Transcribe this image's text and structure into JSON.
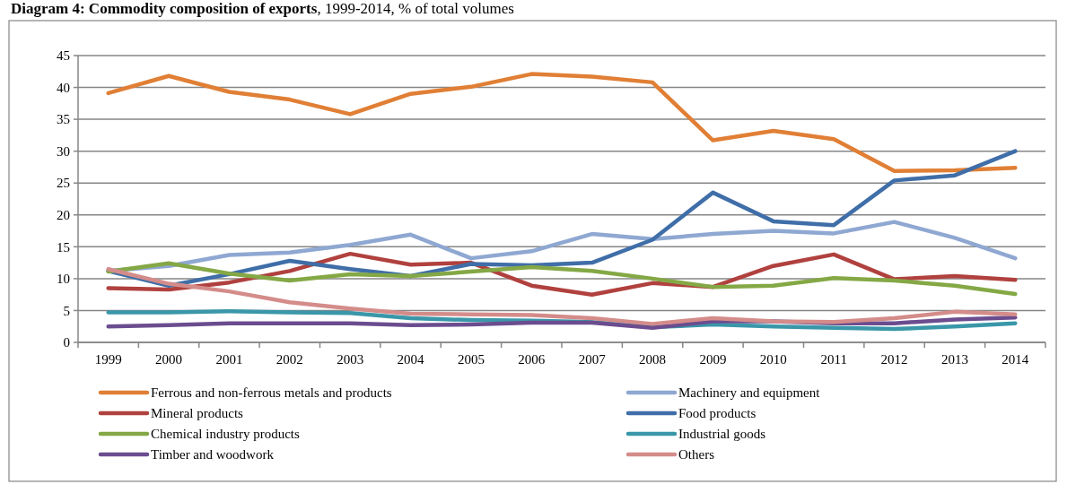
{
  "chart_data": {
    "type": "line",
    "title": "Diagram 4: Commodity composition of exports, 1999-2014, % of total volumes",
    "categories": [
      "1999",
      "2000",
      "2001",
      "2002",
      "2003",
      "2004",
      "2005",
      "2006",
      "2007",
      "2008",
      "2009",
      "2010",
      "2011",
      "2012",
      "2013",
      "2014"
    ],
    "ylim": [
      0,
      45
    ],
    "yticks": [
      0,
      5,
      10,
      15,
      20,
      25,
      30,
      35,
      40,
      45
    ],
    "grid": "y",
    "legend": "bottom",
    "marker": "none",
    "line_style": "solid",
    "series": [
      {
        "name": "Ferrous and non-ferrous metals and products",
        "color": "#e07f35",
        "values": [
          39.1,
          41.8,
          39.3,
          38.1,
          35.8,
          39.0,
          40.1,
          42.1,
          41.7,
          40.8,
          31.7,
          33.2,
          31.9,
          26.9,
          27.0,
          27.4
        ]
      },
      {
        "name": "Machinery and equipment",
        "color": "#8fa8d2",
        "values": [
          11.2,
          12.0,
          13.7,
          14.1,
          15.3,
          16.9,
          13.2,
          14.3,
          17.0,
          16.2,
          17.0,
          17.5,
          17.1,
          18.9,
          16.4,
          13.2
        ]
      },
      {
        "name": "Mineral products",
        "color": "#b0413e",
        "values": [
          8.5,
          8.3,
          9.4,
          11.2,
          13.9,
          12.2,
          12.5,
          8.9,
          7.5,
          9.3,
          8.7,
          12.0,
          13.8,
          9.9,
          10.4,
          9.8
        ]
      },
      {
        "name": "Food products",
        "color": "#3f6ea8",
        "values": [
          11.2,
          8.9,
          10.7,
          12.8,
          11.5,
          10.4,
          12.3,
          12.1,
          12.5,
          16.1,
          23.5,
          19.0,
          18.4,
          25.4,
          26.2,
          30.0
        ]
      },
      {
        "name": "Chemical industry products",
        "color": "#84a845",
        "values": [
          11.1,
          12.4,
          10.8,
          9.7,
          10.7,
          10.4,
          11.1,
          11.8,
          11.2,
          10.0,
          8.7,
          8.9,
          10.1,
          9.7,
          8.9,
          7.6
        ]
      },
      {
        "name": "Industrial goods",
        "color": "#3a97a9",
        "values": [
          4.7,
          4.7,
          4.9,
          4.7,
          4.6,
          3.8,
          3.5,
          3.4,
          3.2,
          2.4,
          2.8,
          2.5,
          2.3,
          2.1,
          2.5,
          3.0
        ]
      },
      {
        "name": "Timber and woodwork",
        "color": "#6b4d8f",
        "values": [
          2.5,
          2.7,
          3.0,
          3.0,
          3.0,
          2.7,
          2.8,
          3.1,
          3.1,
          2.3,
          3.3,
          3.3,
          3.0,
          3.0,
          3.6,
          3.9
        ]
      },
      {
        "name": "Others",
        "color": "#d48c8a",
        "values": [
          11.5,
          9.2,
          8.0,
          6.3,
          5.3,
          4.5,
          4.4,
          4.3,
          3.8,
          2.9,
          3.8,
          3.3,
          3.2,
          3.8,
          4.8,
          4.4
        ]
      }
    ]
  }
}
